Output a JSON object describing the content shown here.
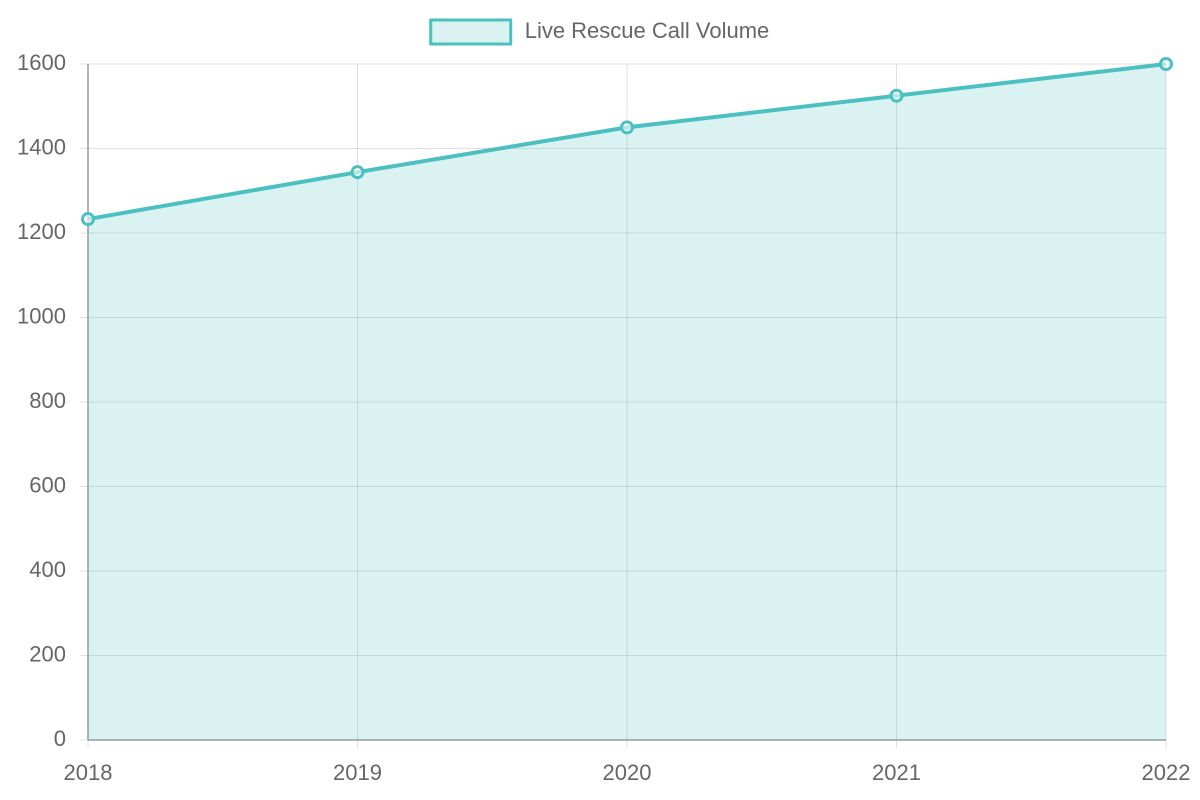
{
  "chart_data": {
    "type": "line",
    "categories": [
      "2018",
      "2019",
      "2020",
      "2021",
      "2022"
    ],
    "series": [
      {
        "name": "Live Rescue Call Volume",
        "color": "#4bc0c0",
        "values": [
          1233,
          1344,
          1450,
          1525,
          1600
        ]
      }
    ],
    "ylim": [
      0,
      1600
    ],
    "yticks": [
      0,
      200,
      400,
      600,
      800,
      1000,
      1200,
      1400,
      1600
    ],
    "grid": true,
    "fill": true,
    "legend": "top"
  }
}
